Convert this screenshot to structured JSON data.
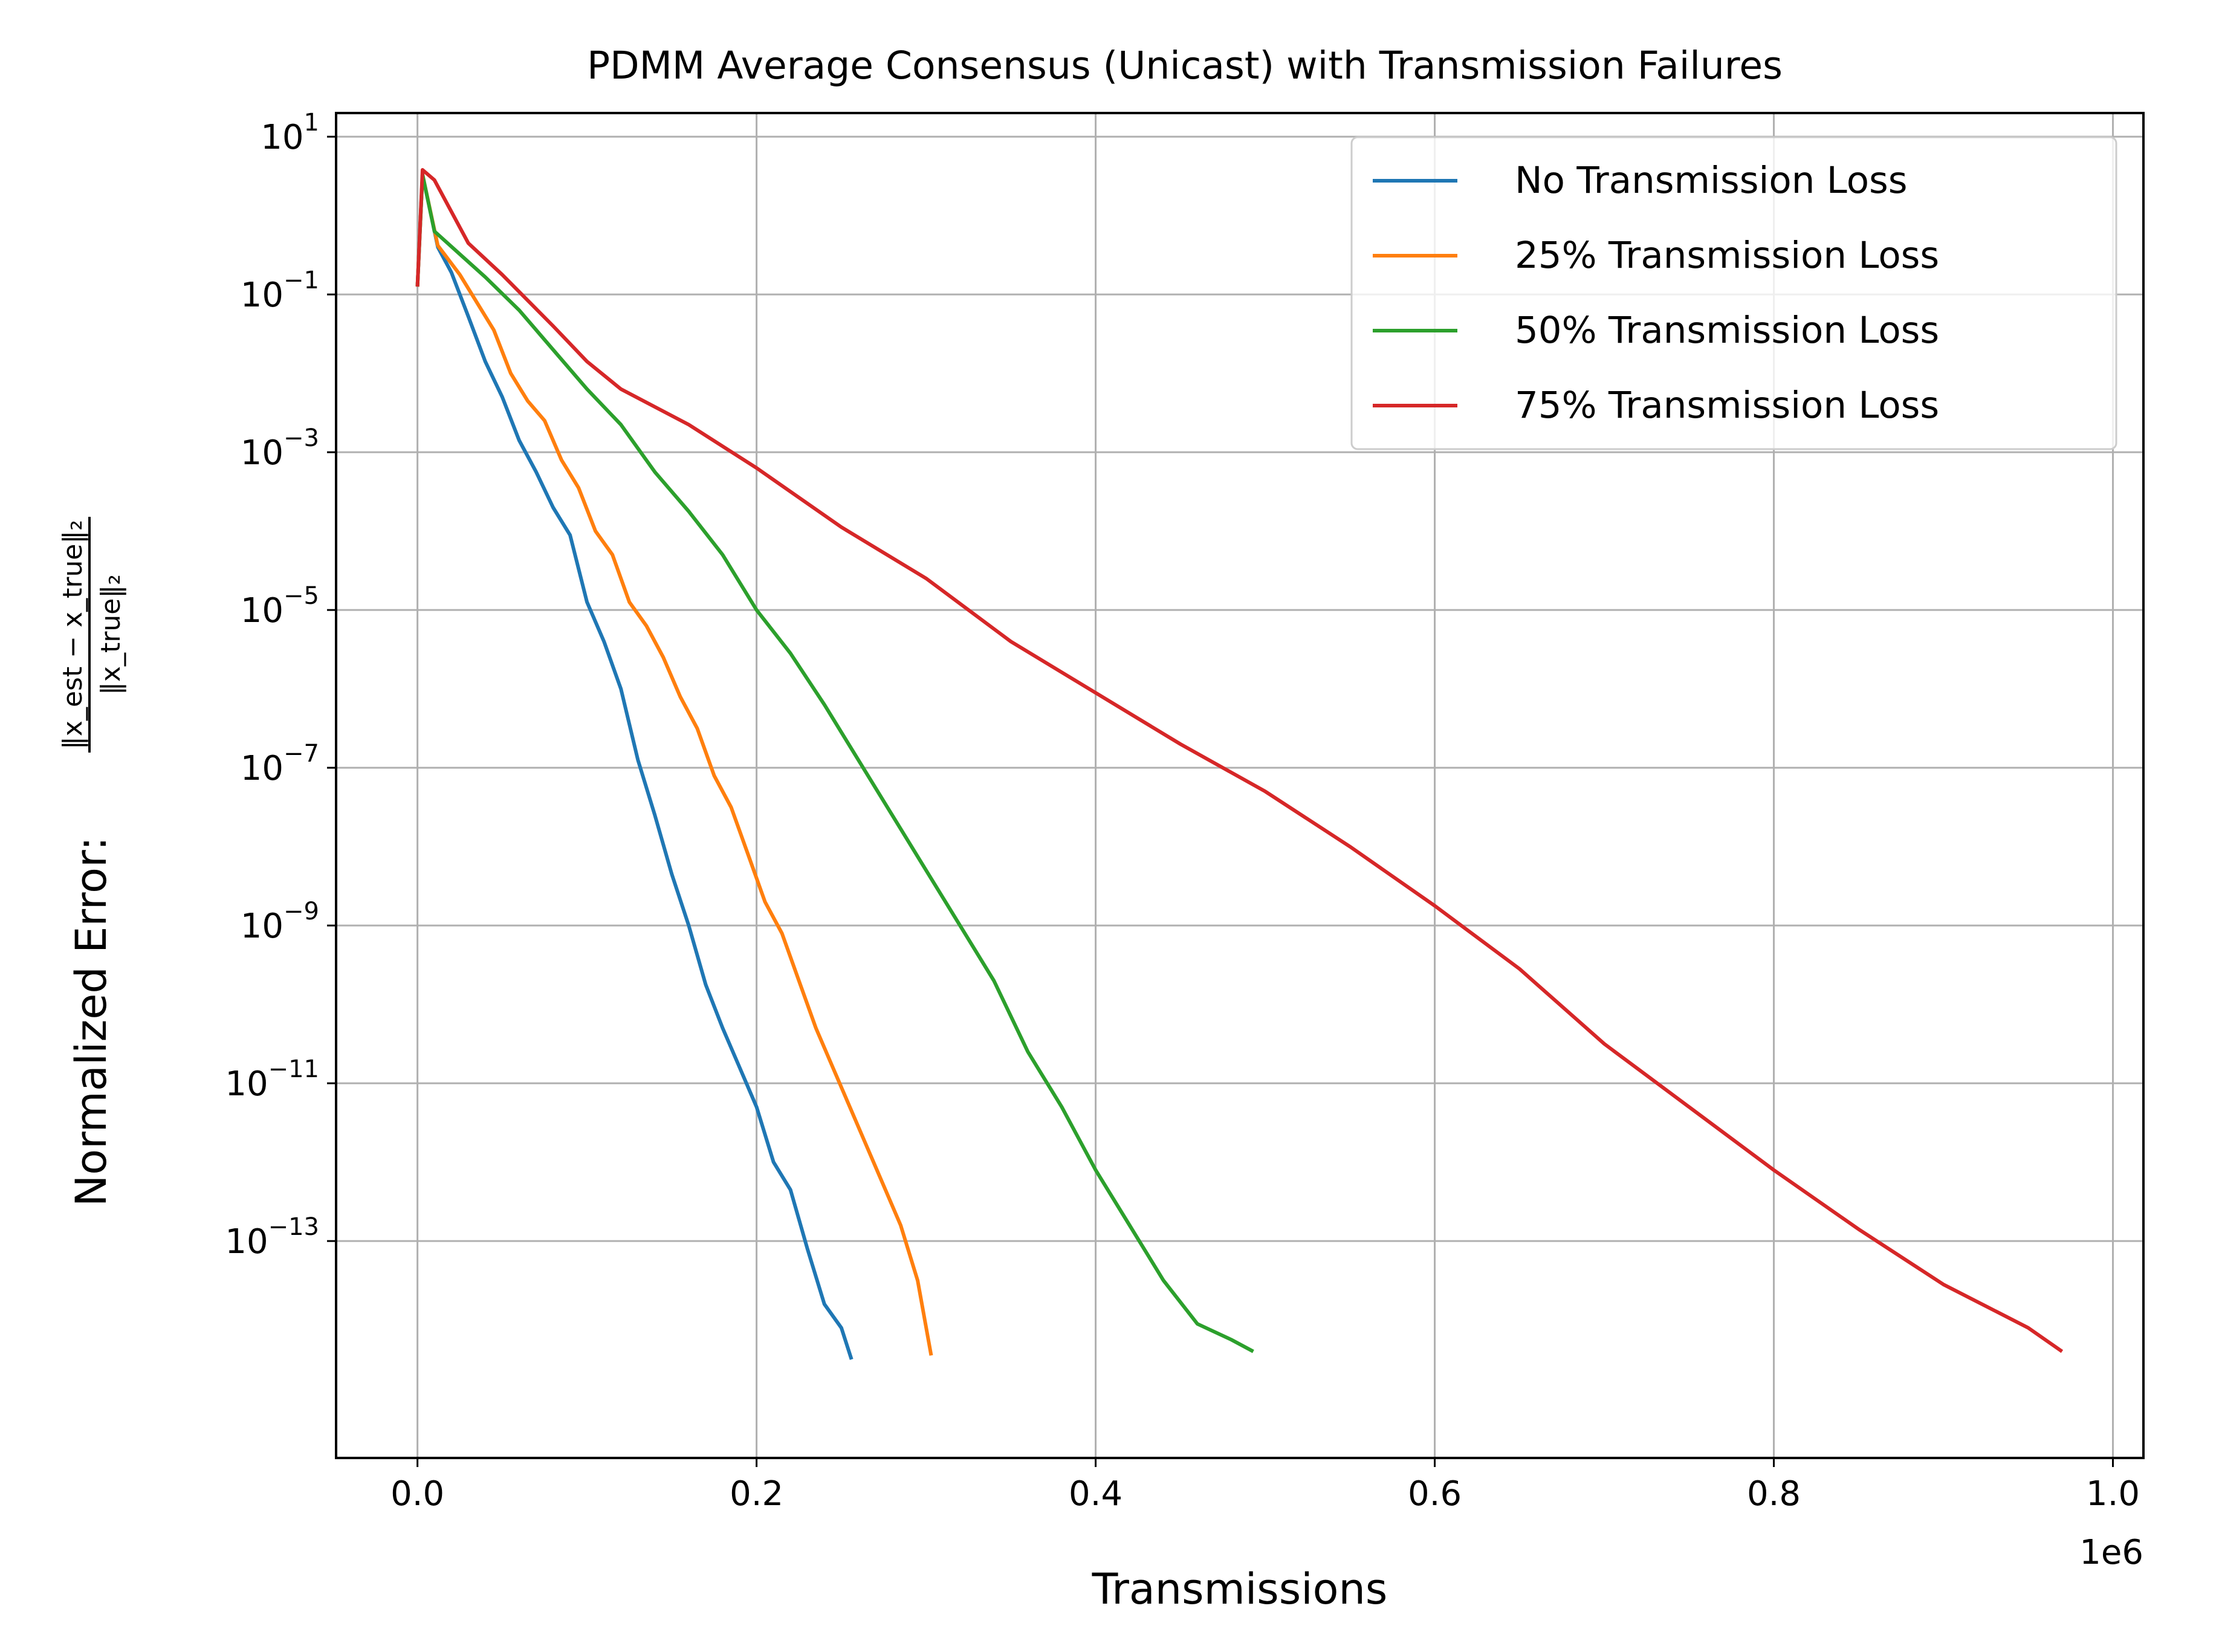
{
  "chart_data": {
    "type": "line",
    "title": "PDMM Average Consensus (Unicast) with Transmission Failures",
    "xlabel": "Transmissions",
    "x_scale_label": "1e6",
    "ylabel_prefix": "Normalized Error:",
    "ylabel_numerator": "‖x_est − x_true‖₂",
    "ylabel_denominator": "‖x_true‖₂",
    "x_scale": "linear",
    "y_scale": "log",
    "xlim": [
      -0.048,
      1.018
    ],
    "ylim_log10": [
      -15.75,
      1.3
    ],
    "x_ticks": [
      0.0,
      0.2,
      0.4,
      0.6,
      0.8,
      1.0
    ],
    "x_tick_labels": [
      "0.0",
      "0.2",
      "0.4",
      "0.6",
      "0.8",
      "1.0"
    ],
    "y_ticks_log10": [
      1,
      -1,
      -3,
      -5,
      -7,
      -9,
      -11,
      -13
    ],
    "y_tick_base": "10",
    "y_tick_exponents": [
      "1",
      "−1",
      "−3",
      "−5",
      "−7",
      "−9",
      "−11",
      "−13"
    ],
    "grid": true,
    "legend_position": "top-right",
    "series": [
      {
        "name": "No Transmission Loss",
        "color": "#1f77b4",
        "x": [
          0.0,
          0.003,
          0.012,
          0.02,
          0.03,
          0.04,
          0.05,
          0.06,
          0.07,
          0.08,
          0.09,
          0.1,
          0.11,
          0.12,
          0.13,
          0.14,
          0.15,
          0.16,
          0.17,
          0.18,
          0.19,
          0.2,
          0.21,
          0.22,
          0.23,
          0.24,
          0.25,
          0.256
        ],
        "log10_y": [
          -0.9,
          0.52,
          -0.4,
          -0.72,
          -1.28,
          -1.85,
          -2.3,
          -2.85,
          -3.25,
          -3.7,
          -4.05,
          -4.9,
          -5.4,
          -6.0,
          -6.9,
          -7.6,
          -8.35,
          -9.0,
          -9.75,
          -10.3,
          -10.8,
          -11.3,
          -12.0,
          -12.35,
          -13.1,
          -13.8,
          -14.1,
          -14.5
        ]
      },
      {
        "name": "25% Transmission Loss",
        "color": "#ff7f0e",
        "x": [
          0.0,
          0.003,
          0.012,
          0.025,
          0.035,
          0.045,
          0.055,
          0.065,
          0.075,
          0.085,
          0.095,
          0.105,
          0.115,
          0.125,
          0.135,
          0.145,
          0.155,
          0.165,
          0.175,
          0.185,
          0.195,
          0.205,
          0.215,
          0.225,
          0.235,
          0.245,
          0.255,
          0.265,
          0.275,
          0.285,
          0.295,
          0.303
        ],
        "log10_y": [
          -0.9,
          0.52,
          -0.38,
          -0.75,
          -1.1,
          -1.45,
          -2.0,
          -2.35,
          -2.6,
          -3.1,
          -3.45,
          -4.0,
          -4.3,
          -4.9,
          -5.2,
          -5.6,
          -6.1,
          -6.5,
          -7.1,
          -7.5,
          -8.1,
          -8.7,
          -9.1,
          -9.7,
          -10.3,
          -10.8,
          -11.3,
          -11.8,
          -12.3,
          -12.8,
          -13.5,
          -14.45
        ]
      },
      {
        "name": "50% Transmission Loss",
        "color": "#2ca02c",
        "x": [
          0.0,
          0.003,
          0.01,
          0.04,
          0.06,
          0.08,
          0.1,
          0.12,
          0.14,
          0.16,
          0.18,
          0.2,
          0.22,
          0.24,
          0.26,
          0.28,
          0.3,
          0.32,
          0.34,
          0.36,
          0.38,
          0.4,
          0.42,
          0.44,
          0.46,
          0.48,
          0.493
        ],
        "log10_y": [
          -0.9,
          0.52,
          -0.2,
          -0.78,
          -1.2,
          -1.7,
          -2.2,
          -2.65,
          -3.25,
          -3.75,
          -4.3,
          -5.0,
          -5.55,
          -6.2,
          -6.9,
          -7.6,
          -8.3,
          -9.0,
          -9.7,
          -10.6,
          -11.3,
          -12.1,
          -12.8,
          -13.5,
          -14.05,
          -14.25,
          -14.4
        ]
      },
      {
        "name": "75% Transmission Loss",
        "color": "#d62728",
        "x": [
          0.0,
          0.003,
          0.01,
          0.02,
          0.03,
          0.05,
          0.08,
          0.1,
          0.12,
          0.16,
          0.2,
          0.25,
          0.3,
          0.35,
          0.4,
          0.45,
          0.5,
          0.55,
          0.6,
          0.65,
          0.7,
          0.75,
          0.8,
          0.85,
          0.9,
          0.95,
          0.97
        ],
        "log10_y": [
          -0.9,
          0.58,
          0.45,
          0.05,
          -0.35,
          -0.75,
          -1.4,
          -1.85,
          -2.2,
          -2.65,
          -3.2,
          -3.95,
          -4.6,
          -5.4,
          -6.05,
          -6.7,
          -7.3,
          -8.0,
          -8.75,
          -9.55,
          -10.5,
          -11.3,
          -12.1,
          -12.85,
          -13.55,
          -14.1,
          -14.4
        ]
      }
    ]
  }
}
